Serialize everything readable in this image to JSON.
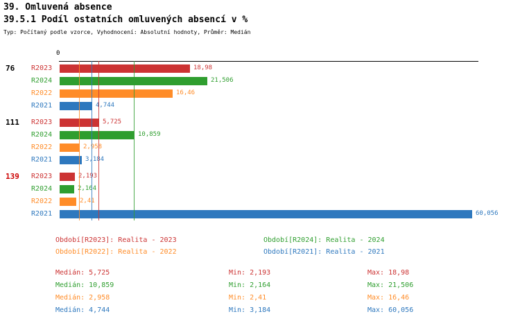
{
  "header": {
    "title1": "39. Omluvená absence",
    "title2": "39.5.1 Podíl ostatních omluvených absencí v %",
    "subtitle": "Typ: Počítaný podle vzorce, Vyhodnocení: Absolutní hodnoty, Průměr: Medián"
  },
  "colors": {
    "R2023": "#cc3333",
    "R2024": "#2f9e2f",
    "R2022": "#ff8c28",
    "R2021": "#2e78be"
  },
  "chart_data": {
    "type": "bar",
    "orientation": "horizontal",
    "x_axis": {
      "zero_label": "0",
      "min": 0,
      "max": 61
    },
    "series_order": [
      "R2023",
      "R2024",
      "R2022",
      "R2021"
    ],
    "groups": [
      {
        "label": "76",
        "label_color": "#000000",
        "bars": [
          {
            "series": "R2023",
            "value": 18.98,
            "display": "18,98"
          },
          {
            "series": "R2024",
            "value": 21.506,
            "display": "21,506"
          },
          {
            "series": "R2022",
            "value": 16.46,
            "display": "16,46"
          },
          {
            "series": "R2021",
            "value": 4.744,
            "display": "4,744"
          }
        ]
      },
      {
        "label": "111",
        "label_color": "#000000",
        "bars": [
          {
            "series": "R2023",
            "value": 5.725,
            "display": "5,725"
          },
          {
            "series": "R2024",
            "value": 10.859,
            "display": "10,859"
          },
          {
            "series": "R2022",
            "value": 2.958,
            "display": "2,958"
          },
          {
            "series": "R2021",
            "value": 3.184,
            "display": "3,184"
          }
        ]
      },
      {
        "label": "139",
        "label_color": "#cc0000",
        "bars": [
          {
            "series": "R2023",
            "value": 2.193,
            "display": "2,193"
          },
          {
            "series": "R2024",
            "value": 2.164,
            "display": "2,164"
          },
          {
            "series": "R2022",
            "value": 2.41,
            "display": "2,41"
          },
          {
            "series": "R2021",
            "value": 60.056,
            "display": "60,056"
          }
        ]
      }
    ],
    "median_lines": [
      {
        "series": "R2022",
        "value": 2.958
      },
      {
        "series": "R2021",
        "value": 4.744
      },
      {
        "series": "R2023",
        "value": 5.725
      },
      {
        "series": "R2024",
        "value": 10.859
      }
    ],
    "statistics": {
      "R2023": {
        "median": 5.725,
        "min": 2.193,
        "max": 18.98
      },
      "R2024": {
        "median": 10.859,
        "min": 2.164,
        "max": 21.506
      },
      "R2022": {
        "median": 2.958,
        "min": 2.41,
        "max": 16.46
      },
      "R2021": {
        "median": 4.744,
        "min": 3.184,
        "max": 60.056
      }
    }
  },
  "legend": [
    {
      "series": "R2023",
      "label": "Období[R2023]: Realita - 2023"
    },
    {
      "series": "R2024",
      "label": "Období[R2024]: Realita - 2024"
    },
    {
      "series": "R2022",
      "label": "Období[R2022]: Realita - 2022"
    },
    {
      "series": "R2021",
      "label": "Období[R2021]: Realita - 2021"
    }
  ],
  "stats": [
    {
      "series": "R2023",
      "median": "Medián: 5,725",
      "min": "Min: 2,193",
      "max": "Max: 18,98"
    },
    {
      "series": "R2024",
      "median": "Medián: 10,859",
      "min": "Min: 2,164",
      "max": "Max: 21,506"
    },
    {
      "series": "R2022",
      "median": "Medián: 2,958",
      "min": "Min: 2,41",
      "max": "Max: 16,46"
    },
    {
      "series": "R2021",
      "median": "Medián: 4,744",
      "min": "Min: 3,184",
      "max": "Max: 60,056"
    }
  ]
}
